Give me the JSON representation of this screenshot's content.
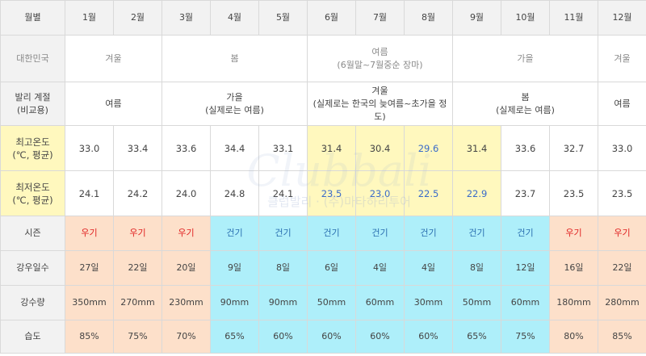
{
  "header": {
    "corner": "월별",
    "months": [
      "1월",
      "2월",
      "3월",
      "4월",
      "5월",
      "6월",
      "7월",
      "8월",
      "9월",
      "10월",
      "11월",
      "12월"
    ]
  },
  "korea": {
    "label": "대한민국",
    "winter1": "겨울",
    "spring": "봄",
    "summer_line1": "여름",
    "summer_line2": "(6월말~7월중순 장마)",
    "autumn": "가을",
    "winter2": "겨울"
  },
  "bali_season": {
    "label_line1": "발리 계절",
    "label_line2": "(비교용)",
    "summer1": "여름",
    "autumn_line1": "가을",
    "autumn_line2": "(실제로는 여름)",
    "winter_line1": "겨울",
    "winter_line2": "(실제로는 한국의 늦여름~초가을 정도)",
    "spring_line1": "봄",
    "spring_line2": "(실제로는 여름)",
    "summer2": "여름"
  },
  "max_temp": {
    "label_line1": "최고온도",
    "label_line2": "(℃, 평균)",
    "values": [
      "33.0",
      "33.4",
      "33.6",
      "34.4",
      "33.1",
      "31.4",
      "30.4",
      "29.6",
      "31.4",
      "33.6",
      "32.7",
      "33.0"
    ]
  },
  "min_temp": {
    "label_line1": "최저온도",
    "label_line2": "(℃, 평균)",
    "values": [
      "24.1",
      "24.2",
      "24.0",
      "24.8",
      "24.1",
      "23.5",
      "23.0",
      "22.5",
      "22.9",
      "23.7",
      "23.5",
      "23.5"
    ]
  },
  "season": {
    "label": "시즌",
    "values": [
      "우기",
      "우기",
      "우기",
      "건기",
      "건기",
      "건기",
      "건기",
      "건기",
      "건기",
      "건기",
      "우기",
      "우기"
    ]
  },
  "rain_days": {
    "label": "강우일수",
    "values": [
      "27일",
      "22일",
      "20일",
      "9일",
      "8일",
      "6일",
      "4일",
      "4일",
      "8일",
      "12일",
      "16일",
      "22일"
    ]
  },
  "rainfall": {
    "label": "강수량",
    "values": [
      "350mm",
      "270mm",
      "230mm",
      "90mm",
      "90mm",
      "50mm",
      "60mm",
      "30mm",
      "50mm",
      "60mm",
      "180mm",
      "280mm"
    ]
  },
  "humidity": {
    "label": "습도",
    "values": [
      "85%",
      "75%",
      "70%",
      "65%",
      "60%",
      "60%",
      "60%",
      "60%",
      "65%",
      "75%",
      "80%",
      "85%"
    ]
  },
  "watermark": {
    "logo": "Clubbali",
    "text": "클럽발리 · (주)마타하리투어"
  },
  "colors": {
    "yellow_highlight": "#fff8be",
    "wet_season": "#fde0ca",
    "dry_season": "#aeeffa",
    "wet_text": "#e02020",
    "cool_temp_text": "#3a6bc9"
  }
}
